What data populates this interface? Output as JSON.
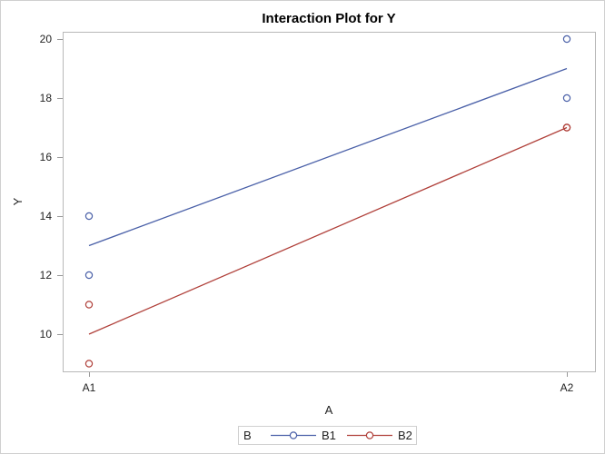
{
  "chart_data": {
    "type": "line",
    "title": "Interaction Plot for Y",
    "xlabel": "A",
    "ylabel": "Y",
    "categories": [
      "A1",
      "A2"
    ],
    "yticks": [
      10,
      12,
      14,
      16,
      18,
      20
    ],
    "ylim": [
      8.8,
      20.8
    ],
    "grid": false,
    "legend": {
      "title": "B",
      "position": "bottom",
      "entries": [
        "B1",
        "B2"
      ]
    },
    "series": [
      {
        "name": "B1",
        "color": "#4a60a8",
        "means": [
          13,
          19
        ],
        "points": [
          {
            "x": "A1",
            "y": 14
          },
          {
            "x": "A1",
            "y": 12
          },
          {
            "x": "A2",
            "y": 20
          },
          {
            "x": "A2",
            "y": 18
          }
        ]
      },
      {
        "name": "B2",
        "color": "#b0403a",
        "means": [
          10,
          17
        ],
        "points": [
          {
            "x": "A1",
            "y": 11
          },
          {
            "x": "A1",
            "y": 9
          },
          {
            "x": "A2",
            "y": 17
          },
          {
            "x": "A2",
            "y": 17
          }
        ]
      }
    ]
  }
}
